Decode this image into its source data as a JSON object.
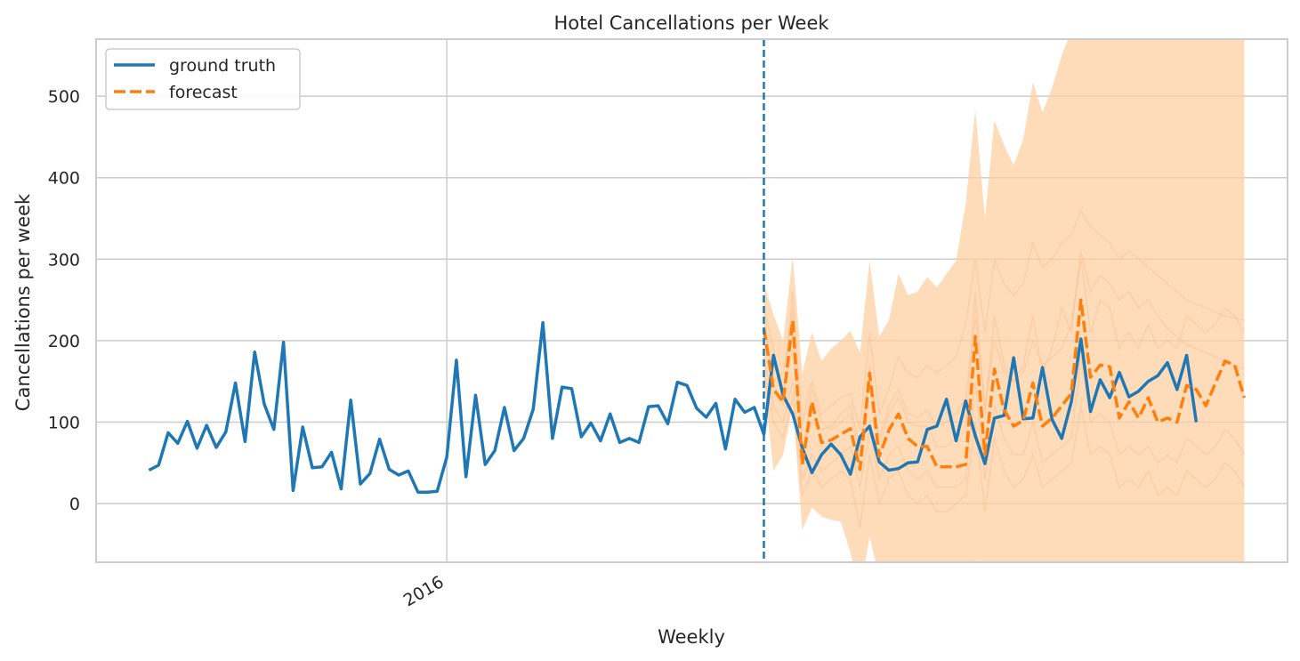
{
  "chart_data": {
    "type": "line",
    "title": "Hotel Cancellations per Week",
    "xlabel": "Weekly",
    "ylabel": "Cancellations per week",
    "ylim": [
      -72,
      570
    ],
    "y_ticks": [
      0,
      100,
      200,
      300,
      400,
      500
    ],
    "x_ticks": [
      {
        "x": 35,
        "label": "2016"
      }
    ],
    "x_range": [
      -1.5,
      122.5
    ],
    "forecast_start": 68,
    "grid": true,
    "legend_position": "top-left",
    "series": [
      {
        "name": "ground truth",
        "color": "#1f77b4",
        "style": "solid",
        "x_start": 4,
        "values": [
          41,
          47,
          87,
          74,
          101,
          68,
          96,
          69,
          88,
          148,
          76,
          186,
          122,
          91,
          198,
          16,
          94,
          44,
          45,
          63,
          18,
          127,
          24,
          37,
          79,
          42,
          35,
          40,
          14,
          14,
          15,
          57,
          176,
          33,
          133,
          48,
          65,
          118,
          65,
          80,
          116,
          222,
          80,
          143,
          141,
          82,
          99,
          77,
          110,
          75,
          80,
          75,
          119,
          120,
          98,
          149,
          145,
          117,
          106,
          123,
          67,
          128,
          112,
          118,
          85,
          182,
          133,
          110,
          68,
          38,
          60,
          73,
          60,
          36,
          82,
          95,
          51,
          41,
          43,
          50,
          51,
          91,
          95,
          128,
          77,
          126,
          83,
          49,
          105,
          108,
          179,
          104,
          105,
          167,
          103,
          80,
          125,
          202,
          113,
          152,
          130,
          161,
          131,
          138,
          150,
          157,
          173,
          140,
          182,
          100
        ]
      },
      {
        "name": "forecast",
        "color": "#ff7f0e",
        "style": "dashed",
        "x_start": 68,
        "values": [
          215,
          140,
          125,
          225,
          48,
          125,
          75,
          78,
          85,
          92,
          42,
          160,
          58,
          90,
          110,
          80,
          70,
          70,
          45,
          45,
          45,
          48,
          205,
          60,
          165,
          115,
          95,
          102,
          148,
          95,
          105,
          120,
          135,
          250,
          155,
          170,
          168,
          105,
          125,
          105,
          130,
          100,
          105,
          100,
          145,
          140,
          120,
          148,
          175,
          170,
          130
        ]
      }
    ],
    "forecast_band": {
      "color": "#fdd0a2",
      "x_start": 68,
      "upper": [
        270,
        232,
        200,
        303,
        160,
        210,
        175,
        190,
        200,
        212,
        185,
        298,
        205,
        225,
        282,
        256,
        260,
        278,
        265,
        282,
        298,
        368,
        484,
        350,
        470,
        440,
        415,
        447,
        517,
        480,
        510,
        550,
        580,
        600,
        620,
        640,
        650,
        660,
        665,
        670,
        675,
        680,
        680,
        680,
        680,
        680,
        680,
        680,
        680,
        680,
        680
      ],
      "lower": [
        150,
        40,
        60,
        120,
        -32,
        -5,
        -16,
        -20,
        -22,
        -60,
        -110,
        -40,
        -90,
        -80,
        -72,
        -110,
        -110,
        -100,
        -110,
        -110,
        -100,
        -110,
        -70,
        -110,
        -110,
        -110,
        -110,
        -110,
        -110,
        -110,
        -110,
        -110,
        -110,
        -110,
        -110,
        -110,
        -110,
        -110,
        -110,
        -110,
        -110,
        -110,
        -110,
        -110,
        -110,
        -110,
        -110,
        -110,
        -110,
        -110,
        -110
      ]
    },
    "sample_paths": {
      "color": "#ffb07a",
      "x_start": 68,
      "paths": [
        [
          240,
          190,
          120,
          260,
          100,
          150,
          110,
          120,
          130,
          135,
          90,
          210,
          110,
          140,
          180,
          160,
          155,
          170,
          160,
          170,
          180,
          220,
          300,
          210,
          300,
          270,
          255,
          270,
          320,
          290,
          300,
          320,
          330,
          360,
          340,
          330,
          320,
          300,
          310,
          300,
          290,
          280,
          270,
          260,
          250,
          245,
          240,
          235,
          230,
          228,
          225
        ],
        [
          200,
          170,
          140,
          190,
          70,
          100,
          90,
          95,
          110,
          120,
          70,
          150,
          80,
          120,
          140,
          110,
          105,
          115,
          95,
          100,
          110,
          130,
          230,
          120,
          200,
          160,
          150,
          170,
          230,
          160,
          190,
          240,
          210,
          310,
          260,
          280,
          270,
          250,
          260,
          240,
          250,
          230,
          215,
          205,
          195,
          190,
          185,
          180,
          175,
          170,
          165
        ],
        [
          180,
          120,
          100,
          150,
          30,
          60,
          40,
          50,
          60,
          70,
          20,
          90,
          30,
          60,
          70,
          40,
          30,
          40,
          20,
          20,
          20,
          30,
          150,
          30,
          120,
          80,
          60,
          60,
          100,
          50,
          60,
          70,
          80,
          180,
          100,
          110,
          100,
          60,
          70,
          60,
          70,
          50,
          60,
          50,
          80,
          70,
          60,
          70,
          90,
          80,
          60
        ],
        [
          230,
          150,
          160,
          240,
          60,
          140,
          100,
          90,
          100,
          110,
          60,
          170,
          70,
          110,
          130,
          100,
          95,
          95,
          70,
          70,
          80,
          90,
          260,
          110,
          230,
          170,
          150,
          160,
          200,
          170,
          180,
          190,
          220,
          300,
          210,
          250,
          240,
          190,
          210,
          190,
          220,
          190,
          200,
          190,
          230,
          220,
          210,
          220,
          240,
          230,
          210
        ],
        [
          160,
          100,
          80,
          130,
          10,
          40,
          20,
          30,
          40,
          30,
          -30,
          60,
          0,
          30,
          40,
          10,
          0,
          10,
          -10,
          -10,
          0,
          10,
          100,
          -10,
          80,
          40,
          20,
          30,
          60,
          20,
          30,
          40,
          50,
          120,
          60,
          70,
          60,
          20,
          30,
          20,
          40,
          10,
          20,
          10,
          40,
          30,
          20,
          30,
          50,
          40,
          20
        ]
      ]
    }
  }
}
